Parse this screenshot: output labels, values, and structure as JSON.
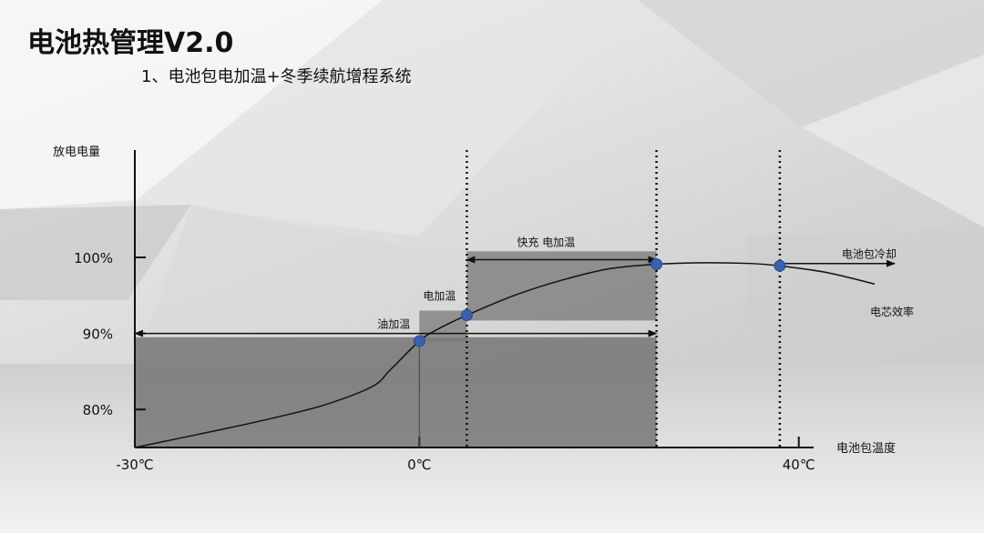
{
  "slide": {
    "title": "电池热管理V2.0",
    "subtitle": "1、电池包电加温+冬季续航增程系统"
  },
  "chart_data": {
    "type": "line",
    "title": "",
    "xlabel": "电池包温度",
    "ylabel": "放电电量",
    "x_ticks": [
      {
        "value": -30,
        "label": "-30℃"
      },
      {
        "value": 0,
        "label": "0℃"
      },
      {
        "value": 40,
        "label": "40℃"
      }
    ],
    "y_ticks": [
      {
        "value": 80,
        "label": "80%"
      },
      {
        "value": 90,
        "label": "90%"
      },
      {
        "value": 100,
        "label": "100%"
      }
    ],
    "xlim": [
      -30,
      48
    ],
    "ylim": [
      75,
      102
    ],
    "series": [
      {
        "name": "电芯效率",
        "points": [
          [
            -30,
            75.0
          ],
          [
            -20,
            77.6
          ],
          [
            -15,
            79.0
          ],
          [
            -10,
            80.6
          ],
          [
            -5,
            83.0
          ],
          [
            -3,
            85.3
          ],
          [
            0,
            89.0
          ],
          [
            2,
            90.6
          ],
          [
            5,
            92.4
          ],
          [
            10,
            95.0
          ],
          [
            15,
            97.0
          ],
          [
            20,
            98.5
          ],
          [
            25,
            99.1
          ],
          [
            30,
            99.3
          ],
          [
            35,
            99.2
          ],
          [
            38,
            98.9
          ],
          [
            43,
            98.0
          ],
          [
            48,
            96.5
          ]
        ]
      }
    ],
    "markers": [
      {
        "x": 0,
        "y": 89.0
      },
      {
        "x": 5,
        "y": 92.4
      },
      {
        "x": 25,
        "y": 99.1
      },
      {
        "x": 38,
        "y": 98.9
      }
    ],
    "regions": [
      {
        "label": "油加温",
        "x": [
          -30,
          25
        ],
        "y": [
          75,
          89.5
        ],
        "arrow_y": 90.0
      },
      {
        "label": "电加温",
        "x": [
          0,
          5
        ],
        "y": [
          89.0,
          93.0
        ]
      },
      {
        "label": "快充 电加温",
        "x": [
          5,
          25
        ],
        "y": [
          91.7,
          100.8
        ],
        "arrow_y": 99.7
      },
      {
        "label": "电池包冷却",
        "x": [
          38,
          48
        ],
        "arrow_y": 99.2
      }
    ],
    "dotted_lines_x": [
      5,
      25,
      38
    ],
    "vertical_line_x": 0,
    "grid": false
  }
}
